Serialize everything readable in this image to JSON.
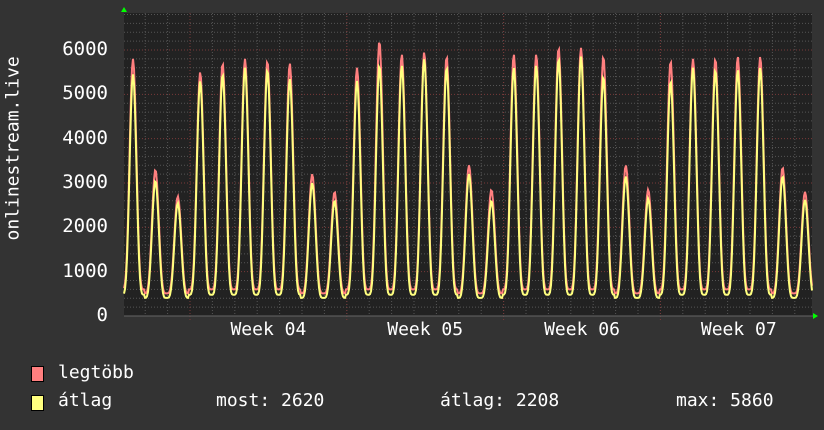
{
  "chart_data": {
    "type": "line",
    "ylabel": "onlinestream.live",
    "ylim": [
      0,
      6800
    ],
    "yticks": [
      "0",
      "1000",
      "2000",
      "3000",
      "4000",
      "5000",
      "6000"
    ],
    "xticks": [
      "Week 04",
      "Week 05",
      "Week 06",
      "Week 07"
    ],
    "grid": true,
    "background": "#222222",
    "series": [
      {
        "name": "legtöbb",
        "color": "#ff7f7f",
        "daily_peaks": [
          5800,
          3300,
          2700,
          5500,
          5700,
          5800,
          5750,
          5700,
          3200,
          2800,
          5600,
          6200,
          5900,
          5950,
          5850,
          3400,
          2850,
          5900,
          5900,
          6050,
          6050,
          5850,
          3400,
          2850,
          5750,
          5800,
          5800,
          5850,
          5850,
          3350,
          2800
        ],
        "daily_trough": 600
      },
      {
        "name": "átlag",
        "color": "#ffff7f",
        "daily_peaks": [
          5450,
          3050,
          2550,
          5300,
          5450,
          5600,
          5550,
          5350,
          3000,
          2600,
          5300,
          5650,
          5650,
          5800,
          5600,
          3200,
          2600,
          5600,
          5650,
          5800,
          5850,
          5400,
          3150,
          2650,
          5300,
          5600,
          5550,
          5550,
          5600,
          3150,
          2620
        ],
        "daily_trough": 480
      }
    ],
    "legend": {
      "items": [
        "legtöbb",
        "átlag"
      ],
      "stats": {
        "most": "most: 2620",
        "atlag": "átlag: 2208",
        "max": "max: 5860"
      }
    }
  }
}
